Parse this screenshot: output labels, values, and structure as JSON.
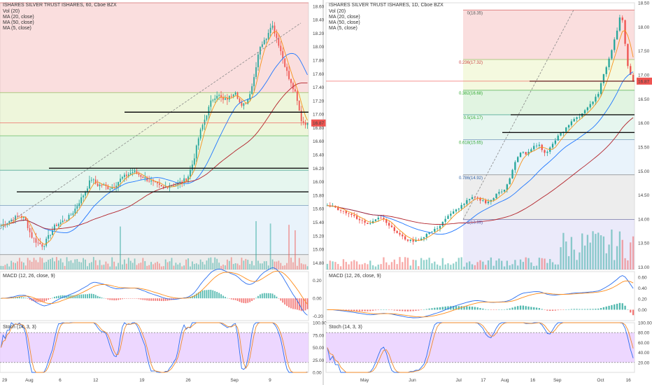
{
  "colors": {
    "up": "#26a69a",
    "down": "#ef5350",
    "ma20": "#1f77ff",
    "ma50": "#b2222a",
    "ma5": "#f7931a",
    "macd": "#2a6ef0",
    "signal": "#ff8c1a",
    "stoch_k": "#2a6ef0",
    "stoch_d": "#ef8a2a",
    "stoch_band": "#e6c6ff",
    "price_tag": "#ef5350"
  },
  "left_panel": {
    "title": "ISHARES SILVER TRUST ISHARES, 60, Cboe BZX",
    "legend": [
      "Vol (20)",
      "MA (20, close)",
      "MA (50, close)",
      "MA (5, close)"
    ],
    "macd_label": "MACD (12, 26, close, 9)",
    "stoch_label": "Stoch (14, 3, 3)",
    "price_tag": "16.87",
    "price_ticks": [
      "18.60",
      "18.40",
      "18.20",
      "18.00",
      "17.80",
      "17.60",
      "17.40",
      "17.20",
      "17.00",
      "16.80",
      "16.60",
      "16.40",
      "16.20",
      "16.00",
      "15.80",
      "15.60",
      "15.40",
      "15.20",
      "15.00",
      "14.80"
    ],
    "macd_ticks": [
      "0.20",
      "0.00",
      "-0.20"
    ],
    "stoch_ticks": [
      "100.00",
      "75.00",
      "50.00",
      "25.00",
      "0.00"
    ],
    "time_ticks": [
      "29",
      "Aug",
      "6",
      "12",
      "19",
      "26",
      "Sep",
      "9"
    ]
  },
  "right_panel": {
    "title": "ISHARES SILVER TRUST ISHARES, 1D, Cboe BZX",
    "legend": [
      "Vol (20)",
      "MA (20, close)",
      "MA (50, close)",
      "MA (5, close)"
    ],
    "macd_label": "MACD (12, 26, close, 9)",
    "stoch_label": "Stoch (14, 3, 3)",
    "price_tag": "16.87",
    "fib_labels": [
      "0(18.35)",
      "0.236(17.32)",
      "0.382(16.68)",
      "0.5(16.17)",
      "0.618(15.65)",
      "0.786(14.92)",
      "1(13.99)"
    ],
    "price_ticks": [
      "18.50",
      "18.00",
      "17.50",
      "17.00",
      "16.50",
      "16.00",
      "15.50",
      "15.00",
      "14.50",
      "14.00",
      "13.50",
      "13.00"
    ],
    "macd_ticks": [
      "0.60",
      "0.40",
      "0.20",
      "0.00"
    ],
    "stoch_ticks": [
      "100.00",
      "80.00",
      "60.00",
      "40.00",
      "20.00"
    ],
    "time_ticks": [
      "May",
      "Jun",
      "Jul",
      "17",
      "Aug",
      "16",
      "Sep",
      "Oct",
      "16"
    ]
  },
  "chart_data": [
    {
      "type": "candlestick",
      "title": "ISHARES SILVER TRUST ISHARES, 60, Cboe BZX",
      "timeframe": "60",
      "ylim": [
        14.7,
        18.65
      ],
      "last_price": 16.87,
      "x_ticks": [
        "29",
        "Aug",
        "6",
        "12",
        "19",
        "26",
        "Sep",
        "9"
      ],
      "close_path": [
        15.35,
        15.4,
        15.45,
        15.5,
        15.45,
        15.2,
        15.1,
        15.05,
        15.2,
        15.35,
        15.4,
        15.45,
        15.55,
        15.7,
        15.85,
        16.05,
        15.95,
        15.95,
        15.9,
        15.95,
        16.05,
        16.1,
        16.15,
        16.1,
        16.05,
        16.0,
        15.95,
        15.9,
        15.95,
        15.95,
        16.0,
        16.05,
        16.3,
        16.7,
        16.95,
        17.2,
        17.3,
        17.2,
        17.25,
        17.35,
        17.1,
        17.2,
        17.5,
        18.0,
        18.1,
        18.35,
        18.1,
        17.8,
        17.5,
        17.3,
        16.9,
        16.85
      ],
      "horizontal_levels": [
        17.03,
        16.2,
        15.85
      ],
      "macd_range": [
        -0.25,
        0.3
      ],
      "stoch_range": [
        0,
        100
      ]
    },
    {
      "type": "candlestick",
      "title": "ISHARES SILVER TRUST ISHARES, 1D, Cboe BZX",
      "timeframe": "1D",
      "ylim": [
        12.95,
        18.5
      ],
      "last_price": 16.87,
      "x_ticks": [
        "May",
        "Jun",
        "Jul",
        "17",
        "Aug",
        "16",
        "Sep",
        "Oct",
        "16"
      ],
      "close_path": [
        14.3,
        14.25,
        14.2,
        14.15,
        14.1,
        14.0,
        13.95,
        13.9,
        14.0,
        14.05,
        13.95,
        13.8,
        13.7,
        13.6,
        13.55,
        13.55,
        13.6,
        13.7,
        13.75,
        13.85,
        14.0,
        14.1,
        14.2,
        14.3,
        14.4,
        14.45,
        14.4,
        14.35,
        14.4,
        14.55,
        14.6,
        14.85,
        15.2,
        15.4,
        15.35,
        15.5,
        15.55,
        15.35,
        15.5,
        15.7,
        15.8,
        15.95,
        16.1,
        16.15,
        16.3,
        16.4,
        16.6,
        17.0,
        17.4,
        17.8,
        18.35,
        17.2,
        16.87
      ],
      "fibonacci": [
        {
          "level": "0",
          "price": 18.35
        },
        {
          "level": "0.236",
          "price": 17.32
        },
        {
          "level": "0.382",
          "price": 16.68
        },
        {
          "level": "0.5",
          "price": 16.17
        },
        {
          "level": "0.618",
          "price": 15.65
        },
        {
          "level": "0.786",
          "price": 14.92
        },
        {
          "level": "1",
          "price": 13.99
        }
      ],
      "horizontal_levels": [
        16.87,
        16.17,
        15.8
      ],
      "macd_range": [
        -0.2,
        0.7
      ],
      "stoch_range": [
        0,
        100
      ]
    }
  ]
}
